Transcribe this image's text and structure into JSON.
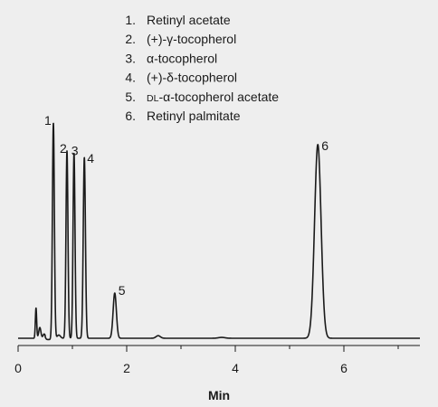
{
  "chart_data": {
    "type": "line",
    "xlabel": "Min",
    "xlim": [
      0,
      7.4
    ],
    "x_ticks": [
      "0",
      "2",
      "4",
      "6"
    ],
    "x_tick_values": [
      0,
      2,
      4,
      6
    ],
    "grid": false,
    "legend_placement": "top-center",
    "legend": [
      {
        "num": "1.",
        "name": "Retinyl acetate"
      },
      {
        "num": "2.",
        "name": "(+)-γ-tocopherol"
      },
      {
        "num": "3.",
        "name": "α-tocopherol"
      },
      {
        "num": "4.",
        "name": "(+)-δ-tocopherol"
      },
      {
        "num": "5.",
        "name": "DL-α-tocopherol acetate"
      },
      {
        "num": "6.",
        "name": "Retinyl palmitate"
      }
    ],
    "peaks": [
      {
        "label": "1",
        "rt": 0.65,
        "height": 1.0,
        "width": 0.018
      },
      {
        "label": "2",
        "rt": 0.9,
        "height": 0.87,
        "width": 0.018
      },
      {
        "label": "3",
        "rt": 1.03,
        "height": 0.86,
        "width": 0.018
      },
      {
        "label": "4",
        "rt": 1.22,
        "height": 0.84,
        "width": 0.02
      },
      {
        "label": "5",
        "rt": 1.78,
        "height": 0.21,
        "width": 0.03
      },
      {
        "label": "6",
        "rt": 5.52,
        "height": 0.9,
        "width": 0.06
      }
    ],
    "minor_peaks": [
      {
        "rt": 0.33,
        "height": 0.14,
        "width": 0.012
      },
      {
        "rt": 0.4,
        "height": 0.05,
        "width": 0.02
      },
      {
        "rt": 0.48,
        "height": 0.02,
        "width": 0.02
      },
      {
        "rt": 0.75,
        "height": 0.015,
        "width": 0.03
      },
      {
        "rt": 2.58,
        "height": 0.012,
        "width": 0.04
      },
      {
        "rt": 3.75,
        "height": 0.004,
        "width": 0.06
      }
    ],
    "line_color": "#1a1a1a",
    "background_color": "#eeeeee"
  }
}
